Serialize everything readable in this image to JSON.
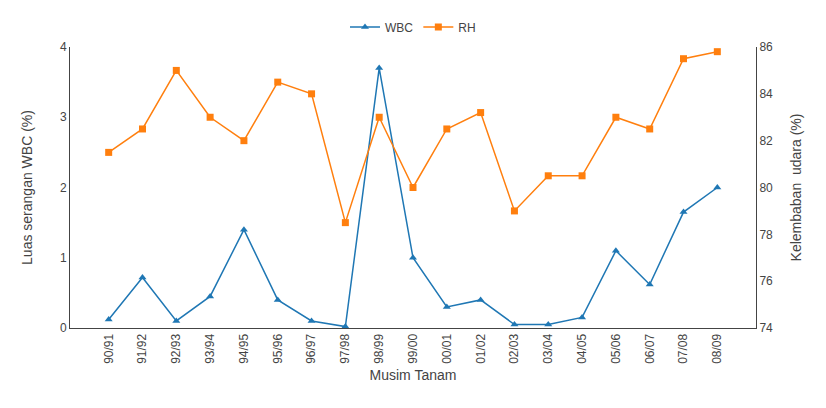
{
  "chart_data": {
    "type": "line",
    "xlabel": "Musim Tanam",
    "ylabel": "Luas serangan WBC (%)",
    "y2label": "Kelembaban  udara (%)",
    "categories": [
      "90/91",
      "91/92",
      "92/93",
      "93/94",
      "94/95",
      "95/96",
      "96/97",
      "97/98",
      "98/99",
      "99/00",
      "00/01",
      "01/02",
      "02/03",
      "03/04",
      "04/05",
      "05/06",
      "06/07",
      "07/08",
      "08/09"
    ],
    "series": [
      {
        "name": "WBC",
        "marker": "triangle-up",
        "values": [
          0.12,
          0.72,
          0.1,
          0.45,
          1.4,
          0.4,
          0.1,
          0.02,
          3.7,
          1.0,
          0.3,
          0.4,
          0.05,
          0.05,
          0.15,
          1.1,
          0.62,
          1.65,
          2.0
        ]
      },
      {
        "name": "RH",
        "marker": "square",
        "axis": "y2",
        "values": [
          81.5,
          82.5,
          85.0,
          83.0,
          82.0,
          84.5,
          84.0,
          78.5,
          83.0,
          80.0,
          82.5,
          83.2,
          79.0,
          80.5,
          80.5,
          83.0,
          82.5,
          85.5,
          85.8
        ]
      }
    ],
    "ylim": [
      0,
      4
    ],
    "yticks": [
      0,
      1,
      2,
      3,
      4
    ],
    "y2lim": [
      74,
      86
    ],
    "y2ticks": [
      74,
      76,
      78,
      80,
      82,
      84,
      86
    ],
    "legend": "top",
    "grid": false
  }
}
